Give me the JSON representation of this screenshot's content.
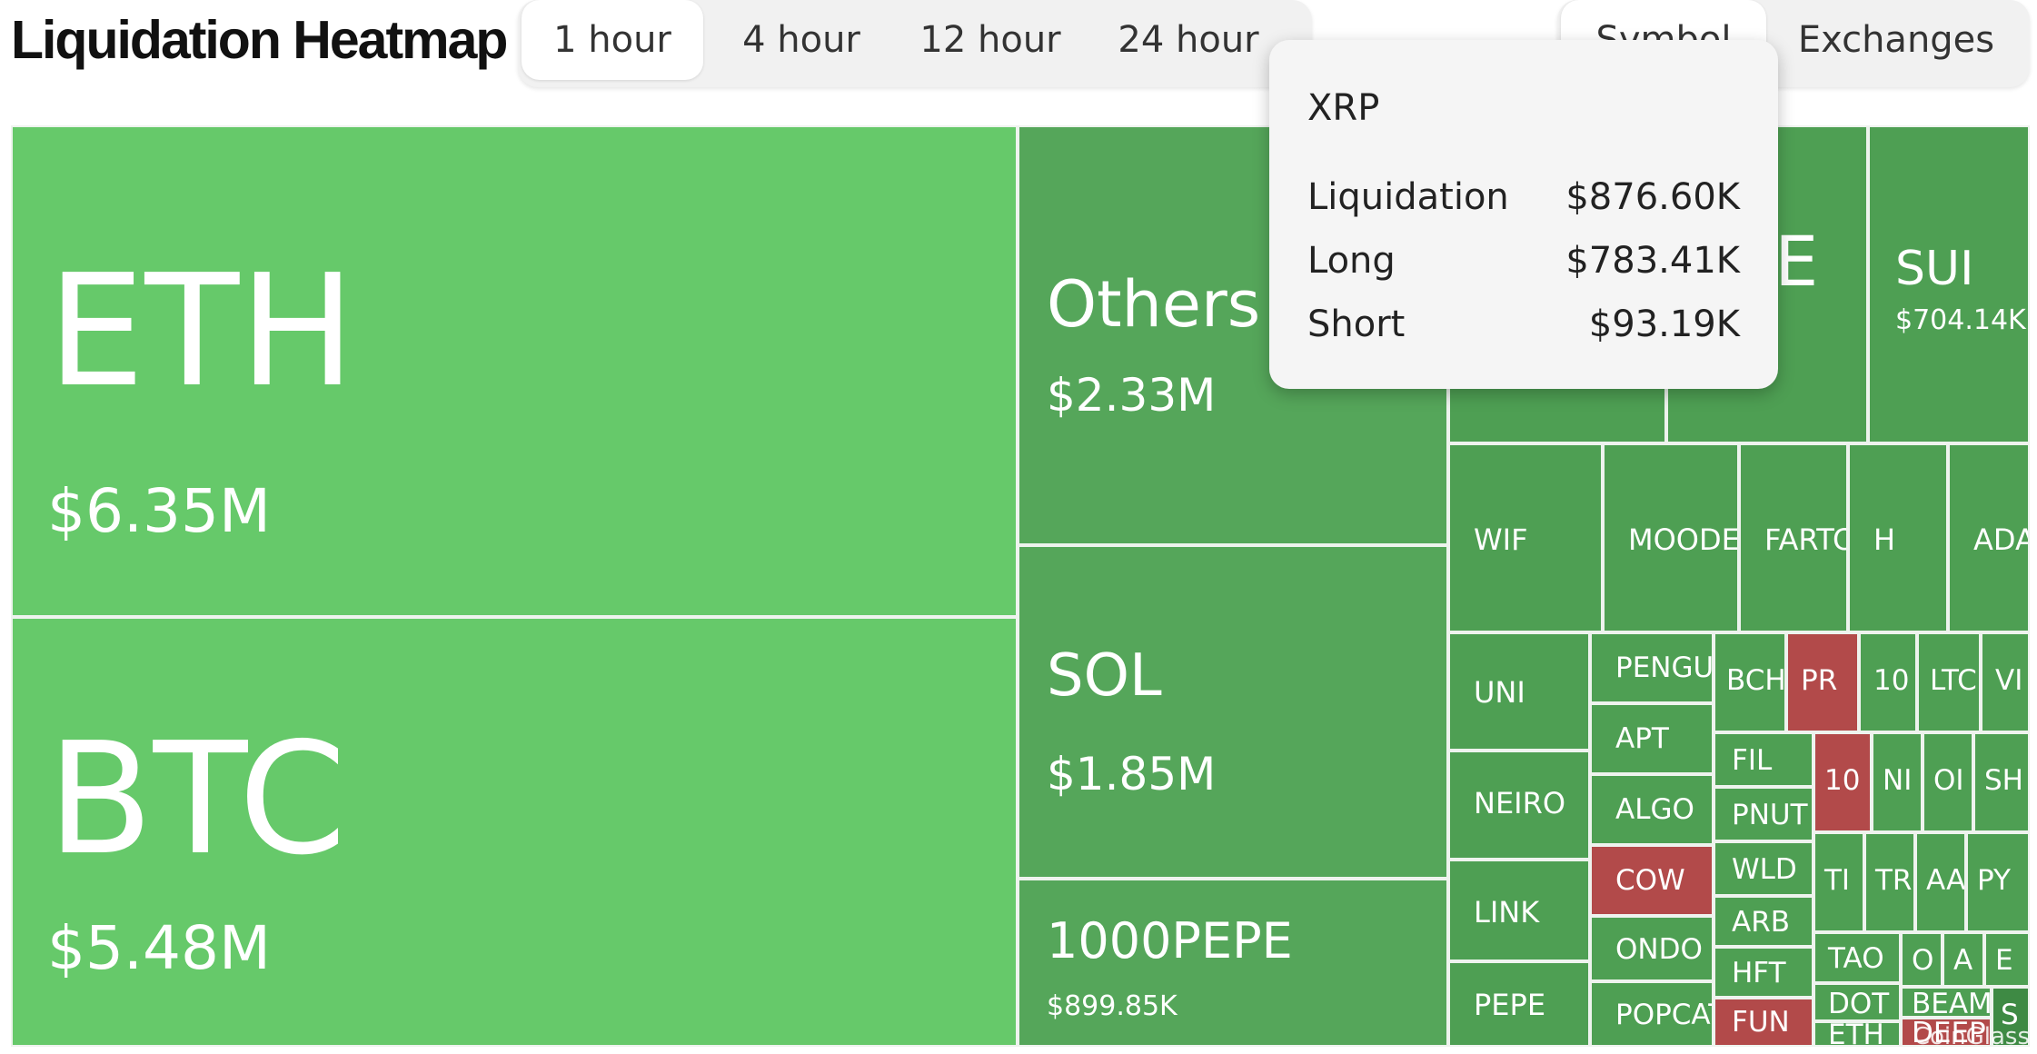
{
  "title": "Liquidation Heatmap",
  "time_tabs": [
    {
      "label": "1 hour",
      "active": true
    },
    {
      "label": "4 hour",
      "active": false
    },
    {
      "label": "12 hour",
      "active": false
    },
    {
      "label": "24 hour",
      "active": false
    }
  ],
  "view_tabs": [
    {
      "label": "Symbol",
      "active": true
    },
    {
      "label": "Exchanges",
      "active": false
    }
  ],
  "colors": {
    "light_green": "#66c96a",
    "mid_green": "#55a65a",
    "dark_green": "#4a9a4f",
    "red": "#b24a4a"
  },
  "tooltip": {
    "symbol": "XRP",
    "rows": [
      {
        "label": "Liquidation",
        "value": "$876.60K"
      },
      {
        "label": "Long",
        "value": "$783.41K"
      },
      {
        "label": "Short",
        "value": "$93.19K"
      }
    ]
  },
  "watermark": "CoinGlass",
  "chart_data": {
    "type": "treemap",
    "title": "Liquidation Heatmap",
    "unit": "USD",
    "items": [
      {
        "symbol": "ETH",
        "value": 6350000,
        "value_label": "$6.35M",
        "color": "#66c96a"
      },
      {
        "symbol": "BTC",
        "value": 5480000,
        "value_label": "$5.48M",
        "color": "#66c96a"
      },
      {
        "symbol": "Others",
        "value": 2330000,
        "value_label": "$2.33M",
        "color": "#55a65a"
      },
      {
        "symbol": "SOL",
        "value": 1850000,
        "value_label": "$1.85M",
        "color": "#55a65a"
      },
      {
        "symbol": "1000PEPE",
        "value": 899850,
        "value_label": "$899.85K",
        "color": "#55a65a"
      },
      {
        "symbol": "XRP",
        "value": 876600,
        "value_label": "",
        "color": "#4e9f53"
      },
      {
        "symbol": "DOGE",
        "value": 0,
        "value_label": "",
        "color": "#4e9f53"
      },
      {
        "symbol": "SUI",
        "value": 704140,
        "value_label": "$704.14K",
        "color": "#4e9f53"
      },
      {
        "symbol": "WIF",
        "value": 0,
        "value_label": "",
        "color": "#4e9f53"
      },
      {
        "symbol": "MOODENG",
        "value": 0,
        "value_label": "",
        "color": "#4e9f53"
      },
      {
        "symbol": "FARTCOIN",
        "value": 0,
        "value_label": "",
        "color": "#4e9f53"
      },
      {
        "symbol": "H",
        "value": 0,
        "value_label": "",
        "color": "#4e9f53"
      },
      {
        "symbol": "ADA",
        "value": 0,
        "value_label": "",
        "color": "#4e9f53"
      },
      {
        "symbol": "UNI",
        "value": 0,
        "value_label": "",
        "color": "#4e9f53"
      },
      {
        "symbol": "NEIRO",
        "value": 0,
        "value_label": "",
        "color": "#4e9f53"
      },
      {
        "symbol": "LINK",
        "value": 0,
        "value_label": "",
        "color": "#4e9f53"
      },
      {
        "symbol": "PEPE",
        "value": 0,
        "value_label": "",
        "color": "#4e9f53"
      },
      {
        "symbol": "PENGU",
        "value": 0,
        "value_label": "",
        "color": "#4e9f53"
      },
      {
        "symbol": "APT",
        "value": 0,
        "value_label": "",
        "color": "#4e9f53"
      },
      {
        "symbol": "ALGO",
        "value": 0,
        "value_label": "",
        "color": "#4e9f53"
      },
      {
        "symbol": "COW",
        "value": 0,
        "value_label": "",
        "color": "#b24a4a"
      },
      {
        "symbol": "ONDO",
        "value": 0,
        "value_label": "",
        "color": "#4e9f53"
      },
      {
        "symbol": "POPCAT",
        "value": 0,
        "value_label": "",
        "color": "#4e9f53"
      },
      {
        "symbol": "BCH",
        "value": 0,
        "value_label": "",
        "color": "#4e9f53"
      },
      {
        "symbol": "PR",
        "value": 0,
        "value_label": "",
        "color": "#b24a4a"
      },
      {
        "symbol": "10",
        "value": 0,
        "value_label": "",
        "color": "#4e9f53"
      },
      {
        "symbol": "LTC",
        "value": 0,
        "value_label": "",
        "color": "#4e9f53"
      },
      {
        "symbol": "VI",
        "value": 0,
        "value_label": "",
        "color": "#4e9f53"
      },
      {
        "symbol": "FIL",
        "value": 0,
        "value_label": "",
        "color": "#4e9f53"
      },
      {
        "symbol": "PNUT",
        "value": 0,
        "value_label": "",
        "color": "#4e9f53"
      },
      {
        "symbol": "10",
        "value": 0,
        "value_label": "",
        "color": "#b24a4a"
      },
      {
        "symbol": "NI",
        "value": 0,
        "value_label": "",
        "color": "#4e9f53"
      },
      {
        "symbol": "OI",
        "value": 0,
        "value_label": "",
        "color": "#4e9f53"
      },
      {
        "symbol": "SH",
        "value": 0,
        "value_label": "",
        "color": "#4e9f53"
      },
      {
        "symbol": "WLD",
        "value": 0,
        "value_label": "",
        "color": "#4e9f53"
      },
      {
        "symbol": "TI",
        "value": 0,
        "value_label": "",
        "color": "#4e9f53"
      },
      {
        "symbol": "TR",
        "value": 0,
        "value_label": "",
        "color": "#4e9f53"
      },
      {
        "symbol": "AA",
        "value": 0,
        "value_label": "",
        "color": "#4e9f53"
      },
      {
        "symbol": "PY",
        "value": 0,
        "value_label": "",
        "color": "#4e9f53"
      },
      {
        "symbol": "ARB",
        "value": 0,
        "value_label": "",
        "color": "#4e9f53"
      },
      {
        "symbol": "TAO",
        "value": 0,
        "value_label": "",
        "color": "#4e9f53"
      },
      {
        "symbol": "O",
        "value": 0,
        "value_label": "",
        "color": "#4e9f53"
      },
      {
        "symbol": "A",
        "value": 0,
        "value_label": "",
        "color": "#4e9f53"
      },
      {
        "symbol": "E",
        "value": 0,
        "value_label": "",
        "color": "#4e9f53"
      },
      {
        "symbol": "HFT",
        "value": 0,
        "value_label": "",
        "color": "#4e9f53"
      },
      {
        "symbol": "DOT",
        "value": 0,
        "value_label": "",
        "color": "#4e9f53"
      },
      {
        "symbol": "BEAM",
        "value": 0,
        "value_label": "",
        "color": "#4e9f53"
      },
      {
        "symbol": "FUN",
        "value": 0,
        "value_label": "",
        "color": "#b24a4a"
      },
      {
        "symbol": "ETH",
        "value": 0,
        "value_label": "",
        "color": "#4e9f53"
      },
      {
        "symbol": "DEEP",
        "value": 0,
        "value_label": "",
        "color": "#b24a4a"
      },
      {
        "symbol": "S",
        "value": 0,
        "value_label": "",
        "color": "#3e8a44"
      }
    ]
  }
}
